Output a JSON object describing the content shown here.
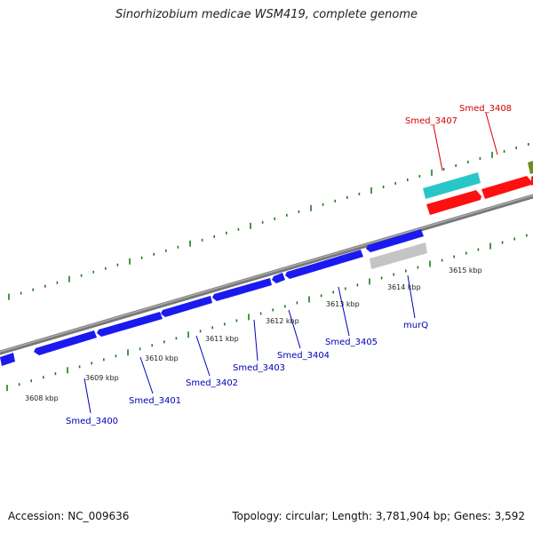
{
  "title": "Sinorhizobium medicae WSM419, complete genome",
  "footer": {
    "accession": "Accession: NC_009636",
    "summary": "Topology: circular; Length: 3,781,904 bp; Genes: 3,592"
  },
  "colors": {
    "forward_gene": "#ff1010",
    "reverse_gene": "#1a1af0",
    "rna": "#29c6c9",
    "pseudo": "#c4c4c4",
    "other": "#6b8e23",
    "backbone": "#888888",
    "tick": "#1e7a1e",
    "forward_label": "#d40000",
    "reverse_label": "#0000bb"
  },
  "kbp_marks": [
    "3608 kbp",
    "3609 kbp",
    "3610 kbp",
    "3611 kbp",
    "3612 kbp",
    "3613 kbp",
    "3614 kbp",
    "3615 kbp"
  ],
  "gene_labels": [
    {
      "text": "Smed_3400",
      "strand": "reverse"
    },
    {
      "text": "Smed_3401",
      "strand": "reverse"
    },
    {
      "text": "Smed_3402",
      "strand": "reverse"
    },
    {
      "text": "Smed_3403",
      "strand": "reverse"
    },
    {
      "text": "Smed_3404",
      "strand": "reverse"
    },
    {
      "text": "Smed_3405",
      "strand": "reverse"
    },
    {
      "text": "murQ",
      "strand": "reverse"
    },
    {
      "text": "Smed_3407",
      "strand": "forward"
    },
    {
      "text": "Smed_3408",
      "strand": "forward"
    }
  ]
}
